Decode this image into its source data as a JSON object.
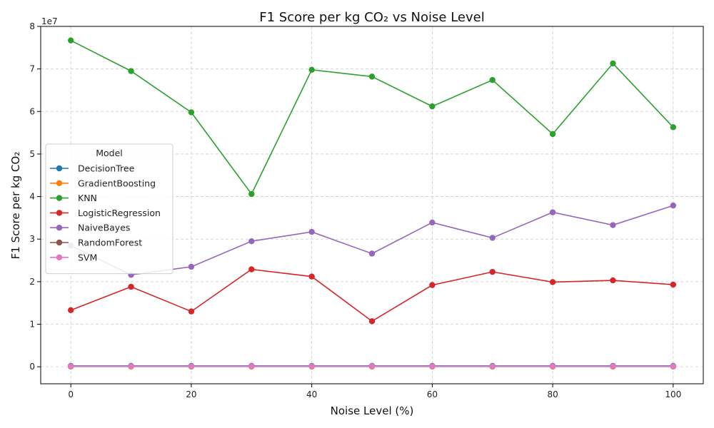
{
  "chart_data": {
    "type": "line",
    "title": "F1 Score per kg CO₂ vs Noise Level",
    "xlabel": "Noise Level (%)",
    "ylabel": "F1 Score per kg CO₂",
    "y_offset_label": "1e7",
    "x": [
      0,
      10,
      20,
      30,
      40,
      50,
      60,
      70,
      80,
      90,
      100
    ],
    "xlim": [
      -5,
      105
    ],
    "ylim": [
      -0.4,
      8.0
    ],
    "y_unit_scale": 10000000,
    "x_ticks": [
      0,
      20,
      40,
      60,
      80,
      100
    ],
    "y_ticks": [
      0,
      1,
      2,
      3,
      4,
      5,
      6,
      7,
      8
    ],
    "grid": true,
    "legend": {
      "title": "Model",
      "placement": "center-left"
    },
    "series": [
      {
        "name": "DecisionTree",
        "color": "#1f77b4",
        "values": [
          0.02,
          0.02,
          0.02,
          0.02,
          0.02,
          0.02,
          0.02,
          0.02,
          0.02,
          0.02,
          0.02
        ]
      },
      {
        "name": "GradientBoosting",
        "color": "#ff7f0e",
        "values": [
          0.005,
          0.005,
          0.005,
          0.005,
          0.005,
          0.005,
          0.005,
          0.005,
          0.005,
          0.005,
          0.005
        ]
      },
      {
        "name": "KNN",
        "color": "#2ca02c",
        "values": [
          7.67,
          6.95,
          5.98,
          4.06,
          6.98,
          6.82,
          6.12,
          6.74,
          5.47,
          7.13,
          5.63
        ]
      },
      {
        "name": "LogisticRegression",
        "color": "#d62728",
        "values": [
          1.33,
          1.88,
          1.3,
          2.29,
          2.12,
          1.07,
          1.92,
          2.23,
          1.99,
          2.03,
          1.93
        ]
      },
      {
        "name": "NaiveBayes",
        "color": "#9467bd",
        "values": [
          2.85,
          2.16,
          2.35,
          2.95,
          3.17,
          2.66,
          3.39,
          3.03,
          3.63,
          3.33,
          3.79
        ]
      },
      {
        "name": "RandomForest",
        "color": "#8c564b",
        "values": [
          0.008,
          0.008,
          0.008,
          0.008,
          0.008,
          0.008,
          0.008,
          0.008,
          0.008,
          0.008,
          0.008
        ]
      },
      {
        "name": "SVM",
        "color": "#e377c2",
        "values": [
          0.01,
          0.01,
          0.01,
          0.01,
          0.01,
          0.01,
          0.01,
          0.01,
          0.01,
          0.01,
          0.01
        ]
      }
    ]
  }
}
